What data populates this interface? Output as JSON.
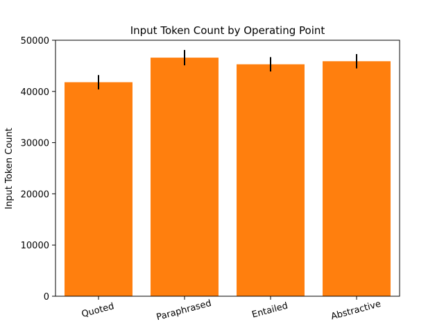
{
  "chart_data": {
    "type": "bar",
    "title": "Input Token Count by Operating Point",
    "xlabel": "",
    "ylabel": "Input Token Count",
    "categories": [
      "Quoted",
      "Paraphrased",
      "Entailed",
      "Abstractive"
    ],
    "values": [
      41800,
      46600,
      45300,
      45900
    ],
    "error": [
      1400,
      1500,
      1400,
      1400
    ],
    "ylim": [
      0,
      50000
    ],
    "yticks": [
      0,
      10000,
      20000,
      30000,
      40000,
      50000
    ],
    "bar_color": "#ff7f0e",
    "error_color": "#000000",
    "grid": false,
    "xtick_rotation_deg": 15
  }
}
